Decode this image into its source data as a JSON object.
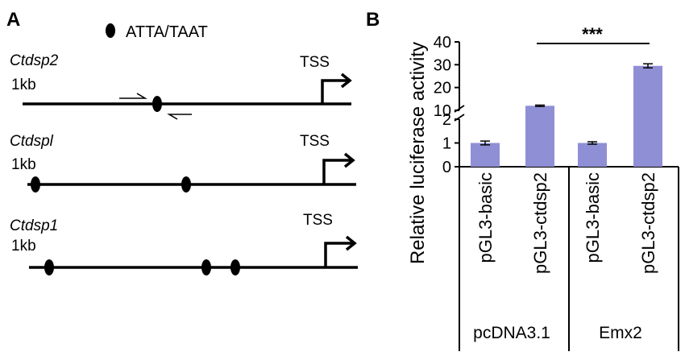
{
  "panel_a": {
    "label": "A",
    "legend": "ATTA/TAAT",
    "genes": [
      {
        "name": "Ctdsp2",
        "scale": "1kb",
        "tss": "TSS"
      },
      {
        "name": "Ctdspl",
        "scale": "1kb",
        "tss": "TSS"
      },
      {
        "name": "Ctdsp1",
        "scale": "1kb",
        "tss": "TSS"
      }
    ]
  },
  "panel_b": {
    "label": "B",
    "significance": "***",
    "groups": [
      "pcDNA3.1",
      "Emx2"
    ]
  },
  "chart_data": {
    "type": "bar",
    "ylabel": "Relative luciferase activity",
    "categories": [
      "pGL3-basic",
      "pGL3-ctdsp2",
      "pGL3-basic",
      "pGL3-ctdsp2"
    ],
    "groups": [
      "pcDNA3.1",
      "Emx2"
    ],
    "values": [
      1.0,
      12.0,
      1.0,
      29.5
    ],
    "errors": [
      0.08,
      0.3,
      0.05,
      0.9
    ],
    "axis": {
      "type": "broken",
      "lower_range": [
        0,
        2
      ],
      "upper_range": [
        10,
        40
      ],
      "lower_ticks": [
        "0",
        "1",
        "2"
      ],
      "upper_ticks": [
        "10",
        "20",
        "30",
        "40"
      ]
    },
    "bar_color": "#8f8fd6",
    "significance": {
      "between": [
        1,
        3
      ],
      "label": "***"
    }
  }
}
